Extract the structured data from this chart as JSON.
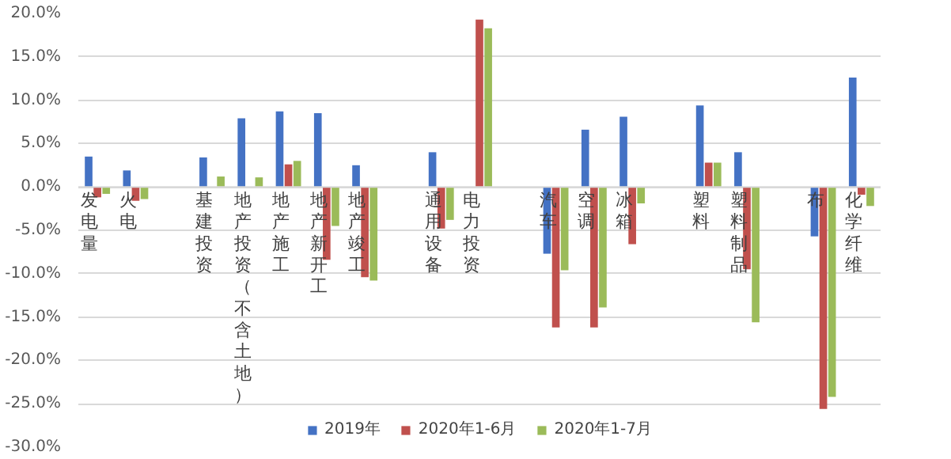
{
  "chart_data": {
    "type": "bar",
    "categories": [
      "发电量",
      "火电",
      null,
      "基建投资",
      "地产投资（不含土地）",
      "地产施工",
      "地产新开工",
      "地产竣工",
      null,
      "通用设备",
      "电力投资",
      null,
      "汽车",
      "空调",
      "冰箱",
      null,
      "塑料",
      "塑料制品",
      null,
      "布",
      "化学纤维"
    ],
    "series": [
      {
        "name": "2019年",
        "color": "#4472c4",
        "values": [
          3.5,
          1.9,
          null,
          3.4,
          7.9,
          8.7,
          8.5,
          2.5,
          null,
          4.0,
          null,
          null,
          -7.7,
          6.6,
          8.1,
          null,
          9.4,
          4.0,
          null,
          -5.7,
          12.6
        ]
      },
      {
        "name": "2020年1-6月",
        "color": "#c0504d",
        "values": [
          -1.2,
          -1.6,
          null,
          null,
          null,
          2.6,
          -8.4,
          -10.4,
          null,
          -4.8,
          19.3,
          null,
          -16.2,
          -16.2,
          -6.6,
          null,
          2.8,
          -9.5,
          null,
          -25.6,
          -0.9
        ]
      },
      {
        "name": "2020年1-7月",
        "color": "#9bbb59",
        "values": [
          -0.8,
          -1.4,
          null,
          1.2,
          1.1,
          3.0,
          -4.5,
          -10.8,
          null,
          -3.8,
          18.3,
          null,
          -9.6,
          -13.9,
          -1.9,
          null,
          2.8,
          -15.6,
          null,
          -24.2,
          -2.2
        ]
      }
    ],
    "ylim": [
      -30,
      20
    ],
    "yticks": [
      {
        "value": -30,
        "label": "-30.0%"
      },
      {
        "value": -25,
        "label": "-25.0%"
      },
      {
        "value": -20,
        "label": "-20.0%"
      },
      {
        "value": -15,
        "label": "-15.0%"
      },
      {
        "value": -10,
        "label": "-10.0%"
      },
      {
        "value": -5,
        "label": "-5.0%"
      },
      {
        "value": 0,
        "label": "0.0%"
      },
      {
        "value": 5,
        "label": "5.0%"
      },
      {
        "value": 10,
        "label": "10.0%"
      },
      {
        "value": 15,
        "label": "15.0%"
      },
      {
        "value": 20,
        "label": "20.0%"
      }
    ],
    "grid": "y",
    "legend": "bottom"
  }
}
